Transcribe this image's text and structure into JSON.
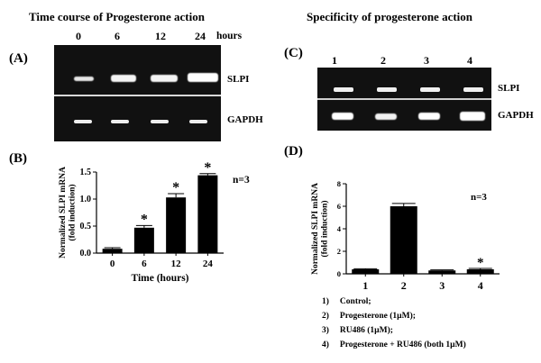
{
  "left_title": "Time course of Progesterone action",
  "right_title": "Specificity of progesterone action",
  "panels": {
    "A": "(A)",
    "B": "(B)",
    "C": "(C)",
    "D": "(D)"
  },
  "gel_A": {
    "lanes": [
      "0",
      "6",
      "12",
      "24"
    ],
    "hours_label": "hours",
    "bands": [
      "SLPI",
      "GAPDH"
    ]
  },
  "gel_C": {
    "lanes": [
      "1",
      "2",
      "3",
      "4"
    ],
    "bands": [
      "SLPI",
      "GAPDH"
    ]
  },
  "chart_data": [
    {
      "type": "bar",
      "panel": "B",
      "categories": [
        "0",
        "6",
        "12",
        "24"
      ],
      "values": [
        0.08,
        0.47,
        1.03,
        1.44
      ],
      "errors": [
        0.02,
        0.04,
        0.07,
        0.03
      ],
      "significant": [
        false,
        true,
        true,
        true
      ],
      "ylabel": "Normalized SLPI mRNA (fold induction)",
      "ylabel_lines": [
        "Normalized SLPI mRNA",
        "(fold induction)"
      ],
      "xlabel": "Time (hours)",
      "yticks": [
        "0.0",
        "0.5",
        "1.0",
        "1.5"
      ],
      "ylim": [
        0,
        1.5
      ],
      "annotation": "n=3",
      "marker": "*"
    },
    {
      "type": "bar",
      "panel": "D",
      "categories": [
        "1",
        "2",
        "3",
        "4"
      ],
      "values": [
        0.4,
        6.0,
        0.3,
        0.4
      ],
      "errors": [
        0.05,
        0.25,
        0.05,
        0.08
      ],
      "significant": [
        false,
        false,
        false,
        true
      ],
      "ylabel": "Normalized SLPI mRNA (fold induction)",
      "ylabel_lines": [
        "Normalized SLPI mRNA",
        "(fold induction)"
      ],
      "xlabel": "",
      "yticks": [
        "0",
        "2",
        "4",
        "6",
        "8"
      ],
      "ylim": [
        0,
        8
      ],
      "annotation": "n=3",
      "marker": "*"
    }
  ],
  "legend_D": [
    {
      "num": "1)",
      "text": "Control;"
    },
    {
      "num": "2)",
      "text": "Progesterone (1µM);"
    },
    {
      "num": "3)",
      "text": "RU486 (1µM);"
    },
    {
      "num": "4)",
      "text": "Progesterone + RU486 (both 1µM)"
    }
  ]
}
